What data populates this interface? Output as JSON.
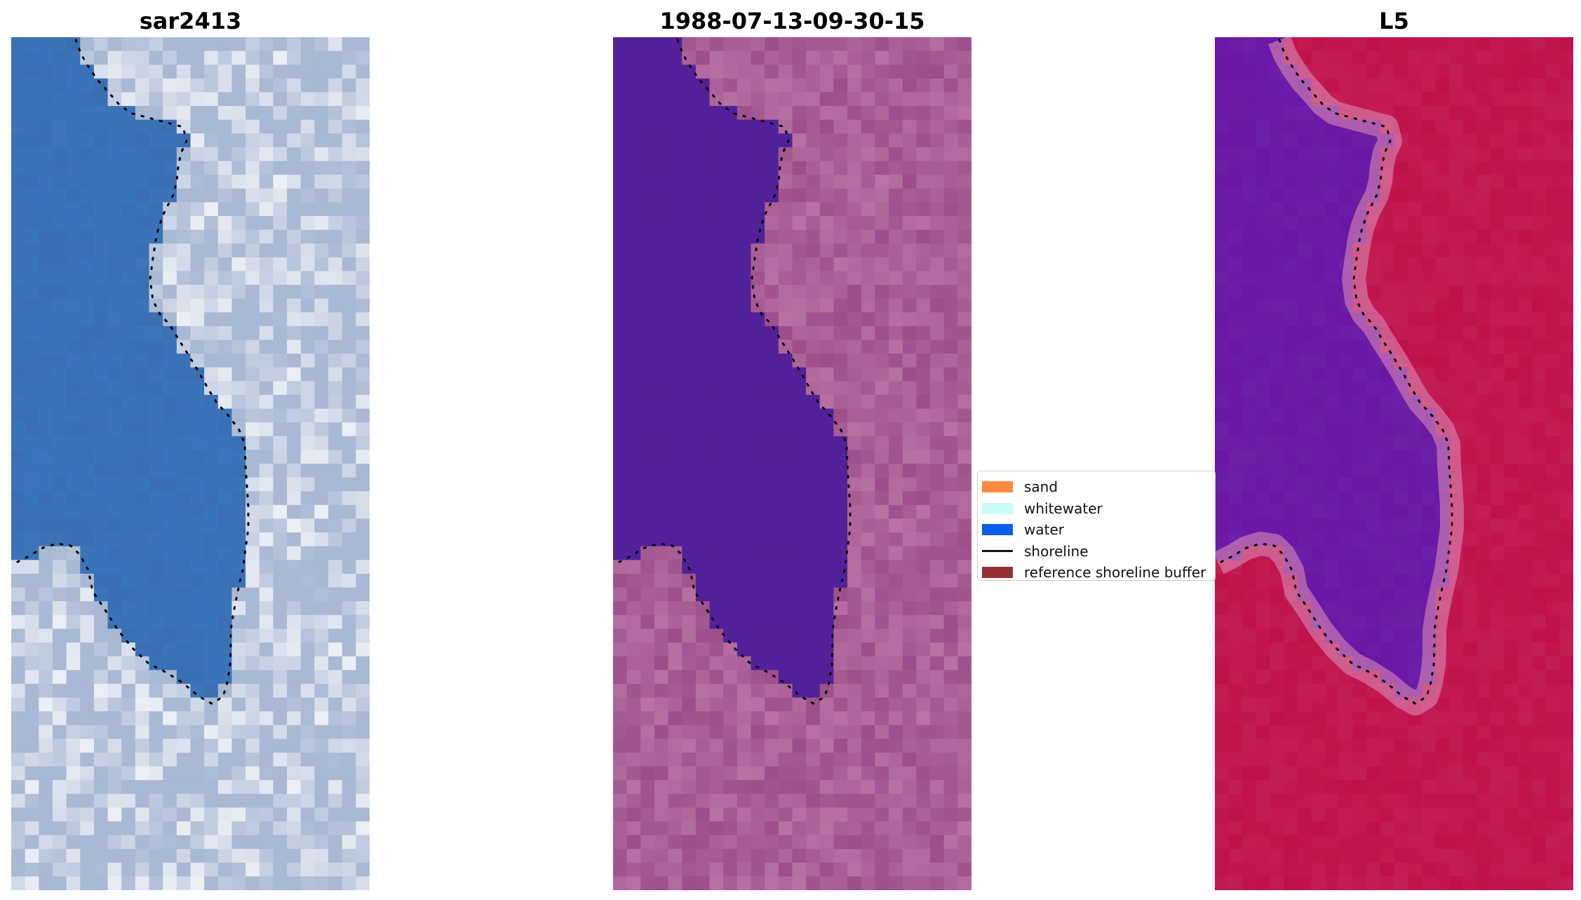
{
  "panels": [
    {
      "title": "sar2413"
    },
    {
      "title": "1988-07-13-09-30-15"
    },
    {
      "title": "L5"
    }
  ],
  "legend": {
    "items": [
      {
        "label": "sand",
        "color": "#ff8a3d",
        "kind": "patch"
      },
      {
        "label": "whitewater",
        "color": "#c9fbf8",
        "kind": "patch"
      },
      {
        "label": "water",
        "color": "#0a5de9",
        "kind": "patch"
      },
      {
        "label": "shoreline",
        "color": "#111111",
        "kind": "line"
      },
      {
        "label": "reference shoreline buffer",
        "color": "#963232",
        "kind": "patch"
      }
    ]
  },
  "colors": {
    "rgb_water": "#3a6fb2",
    "rgb_land": "#a9b9d4",
    "rgb_bright": "#ffffff",
    "classified_water": "#52219a",
    "classified_land": "#9c4e8a",
    "index_water": "#6a16a6",
    "index_land": "#c0124a",
    "shoreline": "#000000"
  }
}
